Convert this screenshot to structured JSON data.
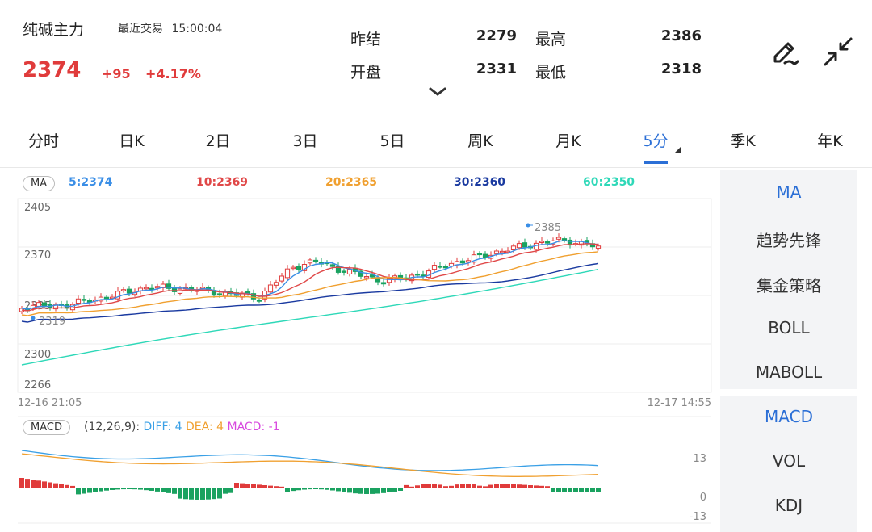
{
  "header": {
    "title": "纯碱主力",
    "recent_label": "最近交易",
    "recent_time": "15:00:04",
    "price": "2374",
    "change": "+95",
    "change_pct": "+4.17%",
    "quotes": [
      {
        "label": "昨结",
        "value": "2279"
      },
      {
        "label": "开盘",
        "value": "2331"
      },
      {
        "label": "最高",
        "value": "2386"
      },
      {
        "label": "最低",
        "value": "2318"
      }
    ]
  },
  "tabs": [
    "分时",
    "日K",
    "2日",
    "3日",
    "5日",
    "周K",
    "月K",
    "5分",
    "季K",
    "年K"
  ],
  "active_tab": "5分",
  "ma": {
    "pill": "MA",
    "values": [
      {
        "label": "5:2374",
        "color": "#3a8ee6"
      },
      {
        "label": "10:2369",
        "color": "#e04848"
      },
      {
        "label": "20:2365",
        "color": "#f0a030"
      },
      {
        "label": "30:2360",
        "color": "#1a3aa0"
      },
      {
        "label": "60:2350",
        "color": "#2ed8b8"
      }
    ]
  },
  "price_axis": [
    "2405",
    "2370",
    "2335",
    "2300",
    "2266"
  ],
  "marks": {
    "high": "2385",
    "low": "2319"
  },
  "time_axis": {
    "start": "12-16 21:05",
    "end": "12-17 14:55"
  },
  "macd": {
    "pill": "MACD",
    "params": "(12,26,9):",
    "diff": "DIFF: 4",
    "dea": "DEA: 4",
    "macd": "MACD: -1",
    "axis": [
      "13",
      "0",
      "-13"
    ]
  },
  "sidebar": {
    "main": [
      "MA",
      "趋势先锋",
      "集金策略",
      "BOLL",
      "MABOLL"
    ],
    "sub": [
      "MACD",
      "VOL",
      "KDJ"
    ]
  },
  "colors": {
    "up": "#e03b3b",
    "down": "#1aa260",
    "accent": "#2b6fd6"
  }
}
